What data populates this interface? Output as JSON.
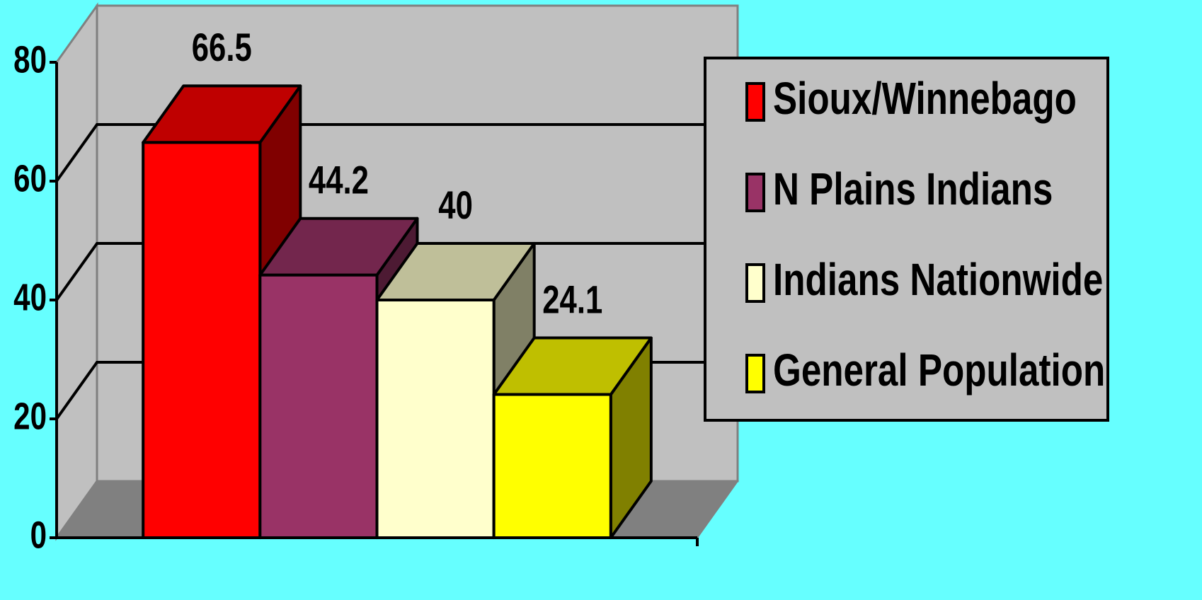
{
  "chart_data": {
    "type": "bar3d",
    "categories": [
      null
    ],
    "series": [
      {
        "name": "Sioux/Winnebago",
        "color": "#ff0000",
        "values": [
          66.5
        ]
      },
      {
        "name": "N Plains Indians",
        "color": "#993366",
        "values": [
          44.2
        ]
      },
      {
        "name": "Indians Nationwide",
        "color": "#ffffcc",
        "values": [
          40
        ]
      },
      {
        "name": "General Population",
        "color": "#ffff00",
        "values": [
          24.1
        ]
      }
    ],
    "ylim": [
      0,
      80
    ],
    "yticks": [
      0,
      20,
      40,
      60,
      80
    ],
    "grid": true,
    "legend": "right"
  }
}
